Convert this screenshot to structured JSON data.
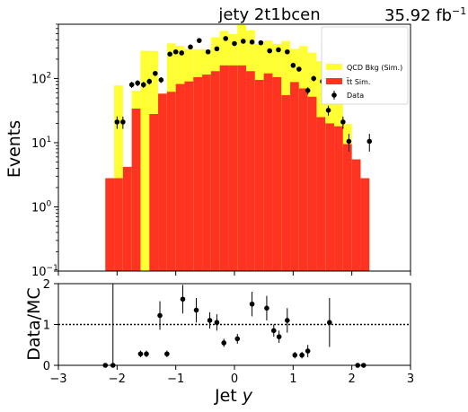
{
  "chart_data": [
    {
      "type": "bar",
      "title": "jety  2t1bcen",
      "lumi_text": "35.92 fb",
      "lumi_exp": "−1",
      "ylabel": "Events",
      "xlabel": "",
      "xlim": [
        -3,
        3
      ],
      "ylim": [
        0.1,
        700
      ],
      "yscale": "log",
      "stacked": true,
      "bin_edges": [
        -2.2,
        -2.05,
        -1.9,
        -1.75,
        -1.6,
        -1.45,
        -1.3,
        -1.15,
        -1.0,
        -0.85,
        -0.7,
        -0.55,
        -0.4,
        -0.25,
        -0.1,
        0.05,
        0.2,
        0.35,
        0.5,
        0.65,
        0.8,
        0.95,
        1.1,
        1.25,
        1.4,
        1.55,
        1.7,
        1.85,
        2.0,
        2.15,
        2.3
      ],
      "series": [
        {
          "name": "QCD Bkg (Sim.)",
          "color": "#ffff33",
          "values": [
            0,
            75,
            0,
            30,
            270,
            240,
            0,
            290,
            240,
            200,
            180,
            170,
            310,
            390,
            330,
            520,
            430,
            250,
            270,
            240,
            330,
            200,
            250,
            200,
            160,
            90,
            50,
            10,
            0,
            0
          ]
        },
        {
          "name": "t̄t Sim.",
          "color": "#ff3322",
          "values": [
            2.8,
            2.8,
            4.2,
            34,
            0,
            28,
            58,
            62,
            82,
            90,
            105,
            115,
            130,
            160,
            160,
            160,
            130,
            95,
            120,
            105,
            55,
            88,
            70,
            52,
            25,
            20,
            18,
            9.5,
            5.5,
            2.8
          ]
        }
      ],
      "data_points": {
        "name": "Data",
        "x": [
          -2.0,
          -1.9,
          -1.75,
          -1.65,
          -1.55,
          -1.45,
          -1.35,
          -1.25,
          -1.1,
          -1.0,
          -0.9,
          -0.75,
          -0.6,
          -0.45,
          -0.3,
          -0.15,
          0.0,
          0.15,
          0.3,
          0.45,
          0.6,
          0.75,
          0.9,
          1.0,
          1.1,
          1.25,
          1.35,
          1.5,
          1.6,
          1.85,
          1.95,
          2.3
        ],
        "y": [
          21,
          21,
          80,
          85,
          80,
          90,
          120,
          95,
          240,
          260,
          250,
          310,
          390,
          260,
          290,
          420,
          350,
          380,
          370,
          360,
          270,
          280,
          260,
          160,
          140,
          65,
          100,
          90,
          32,
          21,
          10.5,
          10.5
        ]
      },
      "legend": {
        "position": "top-right",
        "entries": [
          "QCD Bkg (Sim.)",
          "t̄t Sim.",
          "Data"
        ]
      }
    },
    {
      "type": "scatter",
      "ylabel": "Data/MC",
      "xlabel": "Jet y",
      "xlim": [
        -3,
        3
      ],
      "ylim": [
        0,
        2
      ],
      "reference_line": 1,
      "x": [
        -2.2,
        -2.07,
        -1.6,
        -1.5,
        -1.27,
        -1.15,
        -0.88,
        -0.65,
        -0.42,
        -0.3,
        -0.18,
        0.05,
        0.3,
        0.55,
        0.67,
        0.76,
        0.9,
        1.03,
        1.15,
        1.25,
        1.62,
        2.1,
        2.2
      ],
      "y": [
        0,
        0,
        0.28,
        0.28,
        1.22,
        0.28,
        1.62,
        1.35,
        1.1,
        1.05,
        0.55,
        0.65,
        1.5,
        1.4,
        0.85,
        0.7,
        1.1,
        0.25,
        0.25,
        0.35,
        1.05,
        0,
        0
      ],
      "yerr": [
        0.05,
        2.5,
        0.08,
        0.08,
        0.35,
        0.08,
        0.35,
        0.3,
        0.2,
        0.2,
        0.1,
        0.12,
        0.3,
        0.3,
        0.15,
        0.15,
        0.3,
        0.08,
        0.08,
        0.15,
        0.6,
        0.05,
        0.05
      ]
    }
  ]
}
